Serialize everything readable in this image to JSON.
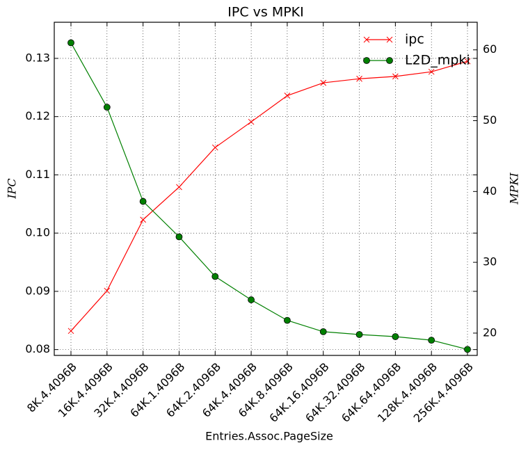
{
  "chart_data": {
    "type": "line",
    "title": "IPC vs MPKI",
    "xlabel": "Entries.Assoc.PageSize",
    "ylabel": "IPC",
    "y2label": "MPKI",
    "categories": [
      "8K.4.4096B",
      "16K.4.4096B",
      "32K.4.4096B",
      "64K.1.4096B",
      "64K.2.4096B",
      "64K.4.4096B",
      "64K.8.4096B",
      "64K.16.4096B",
      "64K.32.4096B",
      "64K.64.4096B",
      "128K.4.4096B",
      "256K.4.4096B"
    ],
    "series": [
      {
        "name": "ipc",
        "color": "#ff0000",
        "marker": "x",
        "values": [
          0.0832,
          0.0901,
          0.1023,
          0.1079,
          0.1147,
          0.1191,
          0.1236,
          0.1258,
          0.1265,
          0.1269,
          0.1277,
          0.1295
        ]
      },
      {
        "name": "L2D_mpki",
        "color": "#008000",
        "marker": "o",
        "axis": "y2",
        "values": [
          61.0,
          51.9,
          38.6,
          33.6,
          28.0,
          24.7,
          21.8,
          20.2,
          19.8,
          19.5,
          19.0,
          17.7
        ]
      }
    ],
    "ylim": [
      0.079,
      0.1362
    ],
    "yticks": [
      0.08,
      0.09,
      {
        "value": 0.1,
        "label": "0.10"
      },
      0.11,
      0.12,
      0.13
    ],
    "y2lim": [
      16.85,
      63.9
    ],
    "y2ticks": [
      20,
      30,
      40,
      50,
      60
    ],
    "grid": true,
    "legend": "upper right"
  }
}
